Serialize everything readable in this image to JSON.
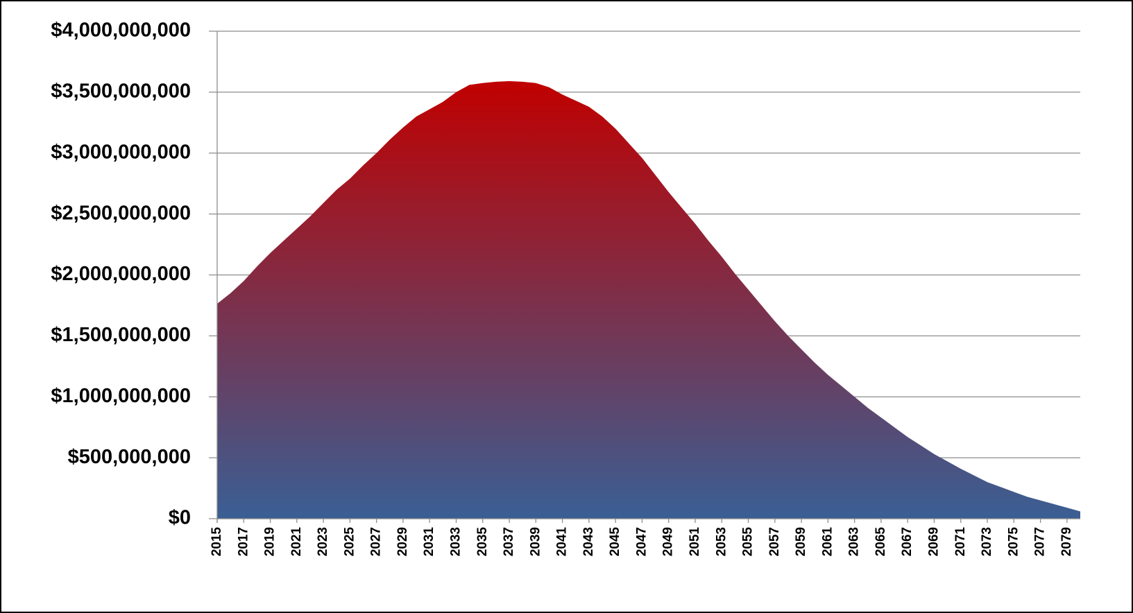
{
  "chart_data": {
    "type": "area",
    "x": [
      2015,
      2016,
      2017,
      2018,
      2019,
      2020,
      2021,
      2022,
      2023,
      2024,
      2025,
      2026,
      2027,
      2028,
      2029,
      2030,
      2031,
      2032,
      2033,
      2034,
      2035,
      2036,
      2037,
      2038,
      2039,
      2040,
      2041,
      2042,
      2043,
      2044,
      2045,
      2046,
      2047,
      2048,
      2049,
      2050,
      2051,
      2052,
      2053,
      2054,
      2055,
      2056,
      2057,
      2058,
      2059,
      2060,
      2061,
      2062,
      2063,
      2064,
      2065,
      2066,
      2067,
      2068,
      2069,
      2070,
      2071,
      2072,
      2073,
      2074,
      2075,
      2076,
      2077,
      2078,
      2079,
      2080
    ],
    "values": [
      1764000000,
      1850000000,
      1950000000,
      2070000000,
      2180000000,
      2280000000,
      2380000000,
      2480000000,
      2590000000,
      2700000000,
      2790000000,
      2900000000,
      3000000000,
      3110000000,
      3210000000,
      3300000000,
      3360000000,
      3420000000,
      3500000000,
      3560000000,
      3575000000,
      3585000000,
      3590000000,
      3585000000,
      3575000000,
      3540000000,
      3480000000,
      3430000000,
      3380000000,
      3300000000,
      3200000000,
      3080000000,
      2960000000,
      2820000000,
      2680000000,
      2550000000,
      2420000000,
      2280000000,
      2150000000,
      2010000000,
      1880000000,
      1750000000,
      1620000000,
      1500000000,
      1390000000,
      1280000000,
      1180000000,
      1090000000,
      1000000000,
      910000000,
      830000000,
      750000000,
      670000000,
      600000000,
      530000000,
      470000000,
      410000000,
      355000000,
      300000000,
      260000000,
      220000000,
      180000000,
      150000000,
      120000000,
      90000000,
      60000000
    ],
    "gradient": [
      "#c00000",
      "#3a5f94"
    ],
    "xlim": [
      2015,
      2080
    ],
    "xticks": [
      2015,
      2017,
      2019,
      2021,
      2023,
      2025,
      2027,
      2029,
      2031,
      2033,
      2035,
      2037,
      2039,
      2041,
      2043,
      2045,
      2047,
      2049,
      2051,
      2053,
      2055,
      2057,
      2059,
      2061,
      2063,
      2065,
      2067,
      2069,
      2071,
      2073,
      2075,
      2077,
      2079
    ],
    "ylim": [
      0,
      4000000000
    ],
    "yticks": [
      {
        "value": 0,
        "label": "$0"
      },
      {
        "value": 500000000,
        "label": "$500,000,000"
      },
      {
        "value": 1000000000,
        "label": "$1,000,000,000"
      },
      {
        "value": 1500000000,
        "label": "$1,500,000,000"
      },
      {
        "value": 2000000000,
        "label": "$2,000,000,000"
      },
      {
        "value": 2500000000,
        "label": "$2,500,000,000"
      },
      {
        "value": 3000000000,
        "label": "$3,000,000,000"
      },
      {
        "value": 3500000000,
        "label": "$3,500,000,000"
      },
      {
        "value": 4000000000,
        "label": "$4,000,000,000"
      }
    ],
    "grid": true
  }
}
